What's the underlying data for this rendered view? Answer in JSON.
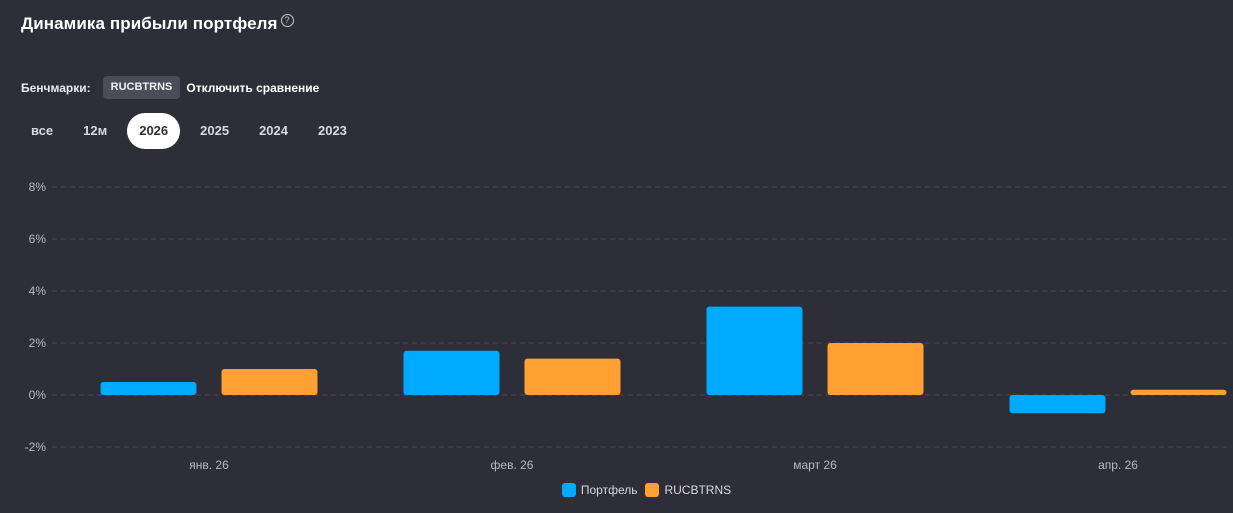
{
  "header": {
    "title": "Динамика прибыли портфеля",
    "help_icon": "question-circle-icon"
  },
  "benchmarks": {
    "label": "Бенчмарки:",
    "chip": "RUCBTRNS",
    "disable_label": "Отключить сравнение"
  },
  "periods": {
    "tabs": [
      {
        "label": "все",
        "active": false
      },
      {
        "label": "12м",
        "active": false
      },
      {
        "label": "2026",
        "active": true
      },
      {
        "label": "2025",
        "active": false
      },
      {
        "label": "2024",
        "active": false
      },
      {
        "label": "2023",
        "active": false
      }
    ]
  },
  "chart_data": {
    "type": "bar",
    "categories": [
      "янв. 26",
      "фев. 26",
      "март 26",
      "апр. 26"
    ],
    "series": [
      {
        "name": "Портфель",
        "color": "#00aaff",
        "values": [
          0.5,
          1.7,
          3.4,
          -0.7
        ]
      },
      {
        "name": "RUCBTRNS",
        "color": "#ffa033",
        "values": [
          1.0,
          1.4,
          2.0,
          0.2
        ]
      }
    ],
    "yticks": [
      8,
      6,
      4,
      2,
      0,
      -2
    ],
    "ytick_labels": [
      "8%",
      "6%",
      "4%",
      "2%",
      "0%",
      "-2%"
    ],
    "ylim": [
      -2,
      8
    ],
    "grid": true,
    "legend_position": "bottom-center",
    "colors": {
      "grid": "#4a4b57",
      "axis_text": "#b9b9c3"
    }
  }
}
